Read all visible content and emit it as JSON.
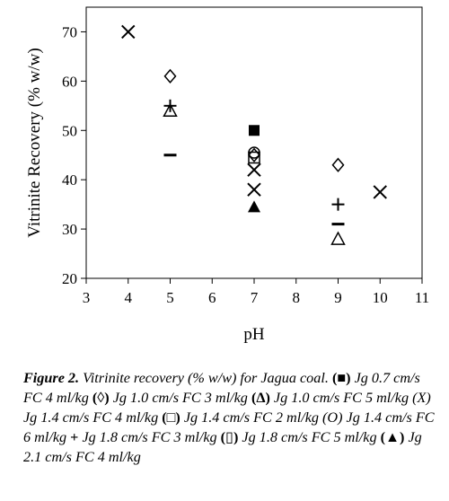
{
  "chart_data": {
    "type": "scatter",
    "xlabel": "pH",
    "ylabel": "Vitrinite Recovery (% w/w)",
    "xlim": [
      3,
      11
    ],
    "ylim": [
      20,
      75
    ],
    "xticks": [
      3,
      4,
      5,
      6,
      7,
      8,
      9,
      10,
      11
    ],
    "yticks": [
      20,
      30,
      40,
      50,
      60,
      70
    ],
    "grid": false,
    "series": [
      {
        "marker": "filled-square",
        "points": [
          [
            7,
            50
          ]
        ]
      },
      {
        "marker": "open-diamond",
        "points": [
          [
            5,
            61
          ],
          [
            7,
            45
          ],
          [
            9,
            43
          ]
        ]
      },
      {
        "marker": "open-triangle",
        "points": [
          [
            5,
            54
          ],
          [
            9,
            28
          ]
        ]
      },
      {
        "marker": "x",
        "points": [
          [
            4,
            70
          ],
          [
            7,
            42
          ],
          [
            7,
            38
          ],
          [
            10,
            37.5
          ]
        ]
      },
      {
        "marker": "open-square",
        "points": [
          [
            7,
            44.5
          ]
        ]
      },
      {
        "marker": "open-circle",
        "points": [
          [
            7,
            45.5
          ]
        ]
      },
      {
        "marker": "plus",
        "points": [
          [
            5,
            55
          ],
          [
            9,
            35
          ]
        ]
      },
      {
        "marker": "dash",
        "points": [
          [
            5,
            45
          ],
          [
            9,
            31
          ]
        ]
      },
      {
        "marker": "filled-triangle",
        "points": [
          [
            7,
            34.5
          ]
        ]
      }
    ]
  },
  "caption": {
    "lead": "Figure 2.",
    "parts": [
      {
        "text": " Vitrinite recovery (% w/w) for Jagua coal. ",
        "sym": "(■)"
      },
      {
        "text": " Jg 0.7 cm/s FC 4 ml/kg ",
        "sym": "(◊)"
      },
      {
        "text": " Jg 1.0 cm/s FC 3 ml/kg ",
        "sym": "(Δ)"
      },
      {
        "text": " Jg 1.0 cm/s FC 5 ml/kg (X) Jg 1.4 cm/s FC 4 ml/kg ",
        "sym": "(□)"
      },
      {
        "text": " Jg 1.4 cm/s FC 2 ml/kg (O) Jg 1.4 cm/s FC 6 ml/kg ",
        "sym": "+"
      },
      {
        "text": " Jg 1.8 cm/s FC 3 ml/kg ",
        "sym": "(▯)"
      },
      {
        "text": " Jg 1.8 cm/s FC 5 ml/kg ",
        "sym": "(▲)"
      },
      {
        "text": " Jg 2.1 cm/s FC 4 ml/kg",
        "sym": ""
      }
    ]
  }
}
